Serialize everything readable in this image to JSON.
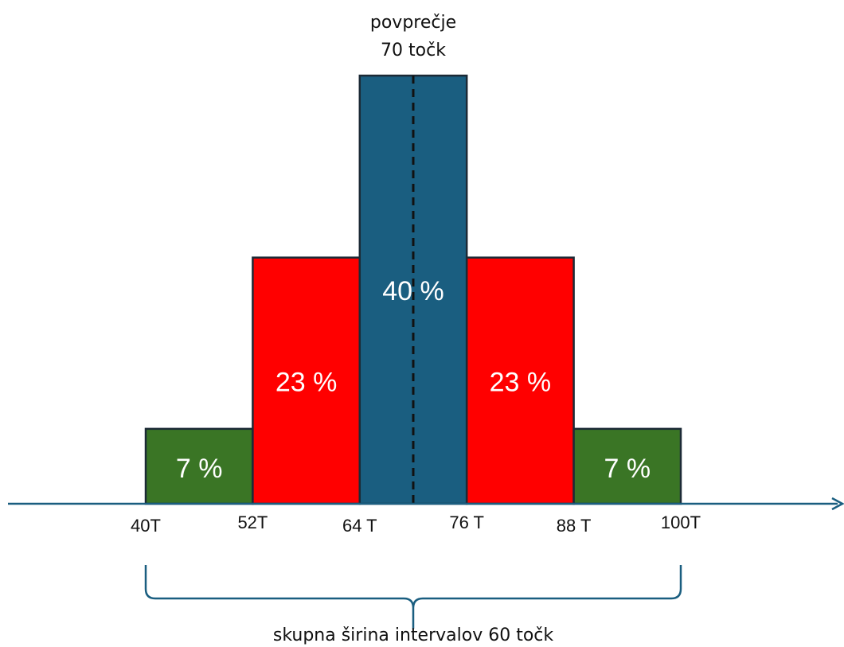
{
  "chart_data": {
    "type": "bar",
    "bins": [
      {
        "from": 40,
        "to": 52,
        "value": 7,
        "label": "7 %",
        "color": "#3a7525"
      },
      {
        "from": 52,
        "to": 64,
        "value": 23,
        "label": "23 %",
        "color": "#ff0000"
      },
      {
        "from": 64,
        "to": 76,
        "value": 40,
        "label": "40 %",
        "color": "#1a5e80"
      },
      {
        "from": 76,
        "to": 88,
        "value": 23,
        "label": "23 %",
        "color": "#ff0000"
      },
      {
        "from": 88,
        "to": 100,
        "value": 7,
        "label": "7 %",
        "color": "#3a7525"
      }
    ],
    "tick_labels": [
      {
        "value": 40,
        "text": "40T"
      },
      {
        "value": 52,
        "text": "52T"
      },
      {
        "value": 64,
        "text": "64 T"
      },
      {
        "value": 76,
        "text": "76 T"
      },
      {
        "value": 88,
        "text": "88 T"
      },
      {
        "value": 100,
        "text": "100T"
      }
    ],
    "mean": {
      "value": 70,
      "label_line1": "povprečje",
      "label_line2": "70 točk"
    },
    "span_annotation": "skupna širina intervalov 60 točk",
    "axis_color": "#1a5e80",
    "grid": false
  }
}
